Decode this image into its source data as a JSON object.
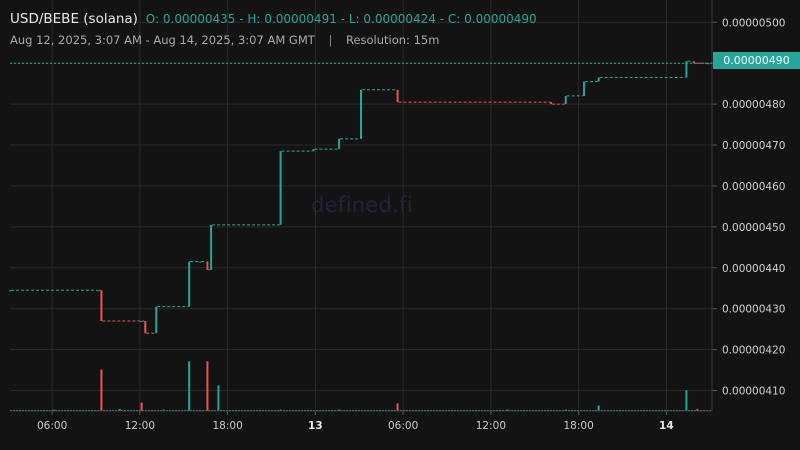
{
  "header": {
    "pair": "USD/BEBE (solana)",
    "open_label": "O:",
    "open": "0.00000435",
    "high_label": "H:",
    "high": "0.00000491",
    "low_label": "L:",
    "low": "0.00000424",
    "close_label": "C:",
    "close": "0.00000490",
    "range": "Aug 12, 2025, 3:07 AM - Aug 14, 2025, 3:07 AM GMT",
    "separator": "|",
    "resolution": "Resolution: 15m"
  },
  "watermark": "defined.fi",
  "last_price_label": "0.00000490",
  "colors": {
    "up": "#26a69a",
    "down": "#ef5350",
    "grid": "#2a2a2a",
    "background": "#131313"
  },
  "chart_data": {
    "type": "candlestick",
    "title": "USD/BEBE (solana)",
    "x_unit": "hours since Aug 12, 2025 03:07 GMT",
    "xlim": [
      0,
      48
    ],
    "ylim": [
      4.05e-06,
      5.03e-06
    ],
    "ytick_values": [
      4.1e-06,
      4.2e-06,
      4.3e-06,
      4.4e-06,
      4.5e-06,
      4.6e-06,
      4.7e-06,
      4.8e-06,
      4.9e-06,
      5e-06
    ],
    "ytick_labels": [
      "0.00000410",
      "0.00000420",
      "0.00000430",
      "0.00000440",
      "0.00000450",
      "0.00000460",
      "0.00000470",
      "0.00000480",
      "0.00000490",
      "0.00000500"
    ],
    "xtick_values": [
      2.88,
      8.88,
      14.88,
      20.88,
      26.88,
      32.88,
      38.88,
      44.88
    ],
    "xtick_labels": [
      "06:00",
      "12:00",
      "18:00",
      "13",
      "06:00",
      "12:00",
      "18:00",
      "14"
    ],
    "last_price": 4.9e-06,
    "candles": [
      {
        "t": 0.0,
        "o": 4.345e-06,
        "c": 4.345e-06
      },
      {
        "t": 6.0,
        "o": 4.345e-06,
        "c": 4.345e-06
      },
      {
        "t": 6.25,
        "o": 4.345e-06,
        "c": 4.27e-06
      },
      {
        "t": 9.0,
        "o": 4.27e-06,
        "c": 4.27e-06
      },
      {
        "t": 9.25,
        "o": 4.27e-06,
        "c": 4.24e-06
      },
      {
        "t": 10.0,
        "o": 4.24e-06,
        "c": 4.305e-06
      },
      {
        "t": 12.25,
        "o": 4.305e-06,
        "c": 4.415e-06
      },
      {
        "t": 13.0,
        "o": 4.415e-06,
        "c": 4.415e-06
      },
      {
        "t": 13.5,
        "o": 4.415e-06,
        "c": 4.395e-06
      },
      {
        "t": 13.75,
        "o": 4.395e-06,
        "c": 4.505e-06
      },
      {
        "t": 18.5,
        "o": 4.505e-06,
        "c": 4.685e-06
      },
      {
        "t": 20.75,
        "o": 4.685e-06,
        "c": 4.69e-06
      },
      {
        "t": 22.5,
        "o": 4.69e-06,
        "c": 4.715e-06
      },
      {
        "t": 24.0,
        "o": 4.715e-06,
        "c": 4.835e-06
      },
      {
        "t": 26.5,
        "o": 4.835e-06,
        "c": 4.805e-06
      },
      {
        "t": 37.0,
        "o": 4.805e-06,
        "c": 4.8e-06
      },
      {
        "t": 38.0,
        "o": 4.8e-06,
        "c": 4.82e-06
      },
      {
        "t": 39.25,
        "o": 4.82e-06,
        "c": 4.855e-06
      },
      {
        "t": 40.25,
        "o": 4.855e-06,
        "c": 4.865e-06
      },
      {
        "t": 46.25,
        "o": 4.865e-06,
        "c": 4.905e-06
      },
      {
        "t": 46.75,
        "o": 4.905e-06,
        "c": 4.9e-06
      },
      {
        "t": 47.75,
        "o": 4.9e-06,
        "c": 4.9e-06
      }
    ],
    "volume": {
      "ylim": [
        0,
        100
      ],
      "bars": [
        {
          "t": 6.25,
          "v": 60,
          "dir": "down"
        },
        {
          "t": 9.0,
          "v": 12,
          "dir": "down"
        },
        {
          "t": 12.25,
          "v": 72,
          "dir": "up"
        },
        {
          "t": 13.5,
          "v": 72,
          "dir": "down"
        },
        {
          "t": 14.25,
          "v": 37,
          "dir": "up"
        },
        {
          "t": 26.5,
          "v": 11,
          "dir": "down"
        },
        {
          "t": 40.25,
          "v": 8,
          "dir": "up"
        },
        {
          "t": 46.25,
          "v": 30,
          "dir": "up"
        },
        {
          "t": 47.0,
          "v": 3,
          "dir": "down"
        },
        {
          "t": 3.0,
          "v": 2,
          "dir": "up"
        },
        {
          "t": 7.5,
          "v": 3,
          "dir": "up"
        },
        {
          "t": 10.5,
          "v": 2,
          "dir": "up"
        },
        {
          "t": 18.5,
          "v": 2,
          "dir": "up"
        },
        {
          "t": 22.5,
          "v": 2,
          "dir": "up"
        },
        {
          "t": 34.0,
          "v": 2,
          "dir": "up"
        },
        {
          "t": 38.0,
          "v": 2,
          "dir": "up"
        }
      ]
    }
  }
}
